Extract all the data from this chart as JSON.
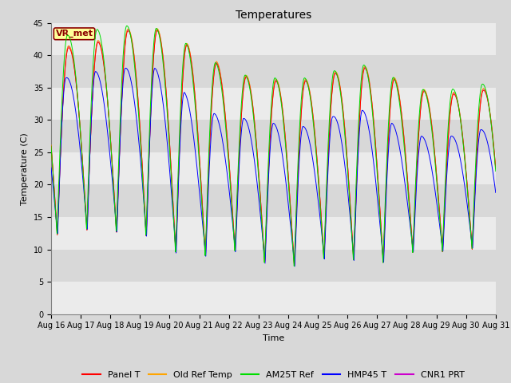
{
  "title": "Temperatures",
  "xlabel": "Time",
  "ylabel": "Temperature (C)",
  "ylim": [
    0,
    45
  ],
  "annotation": "VR_met",
  "series_colors": {
    "Panel T": "#FF0000",
    "Old Ref Temp": "#FFA500",
    "AM25T Ref": "#00DD00",
    "HMP45 T": "#0000FF",
    "CNR1 PRT": "#CC00CC"
  },
  "tick_labels": [
    "Aug 16",
    "Aug 17",
    "Aug 18",
    "Aug 19",
    "Aug 20",
    "Aug 21",
    "Aug 22",
    "Aug 23",
    "Aug 24",
    "Aug 25",
    "Aug 26",
    "Aug 27",
    "Aug 28",
    "Aug 29",
    "Aug 30",
    "Aug 31"
  ],
  "background_color": "#D8D8D8",
  "plot_bg_color": "#D8D8D8",
  "band_color": "#EBEBEB",
  "title_fontsize": 10,
  "axis_label_fontsize": 8,
  "tick_fontsize": 7,
  "legend_fontsize": 8
}
